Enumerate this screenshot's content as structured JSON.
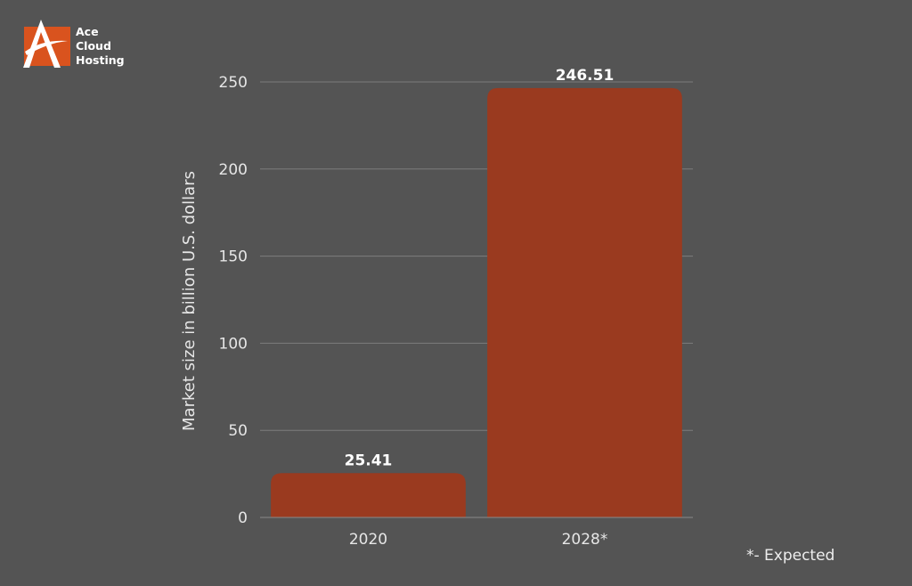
{
  "brand": {
    "logo_lines": [
      "Ace",
      "Cloud",
      "Hosting"
    ]
  },
  "chart_data": {
    "type": "bar",
    "categories": [
      "2020",
      "2028*"
    ],
    "values": [
      25.41,
      246.51
    ],
    "data_labels": [
      "25.41",
      "246.51"
    ],
    "xlabel": "",
    "ylabel": "Market size in billion U.S. dollars",
    "ylim": [
      0,
      250
    ],
    "yticks": [
      0,
      50,
      100,
      150,
      200,
      250
    ],
    "grid": true,
    "bar_color": "#9a3a1f",
    "background": "#545454"
  },
  "footnote": "*- Expected"
}
